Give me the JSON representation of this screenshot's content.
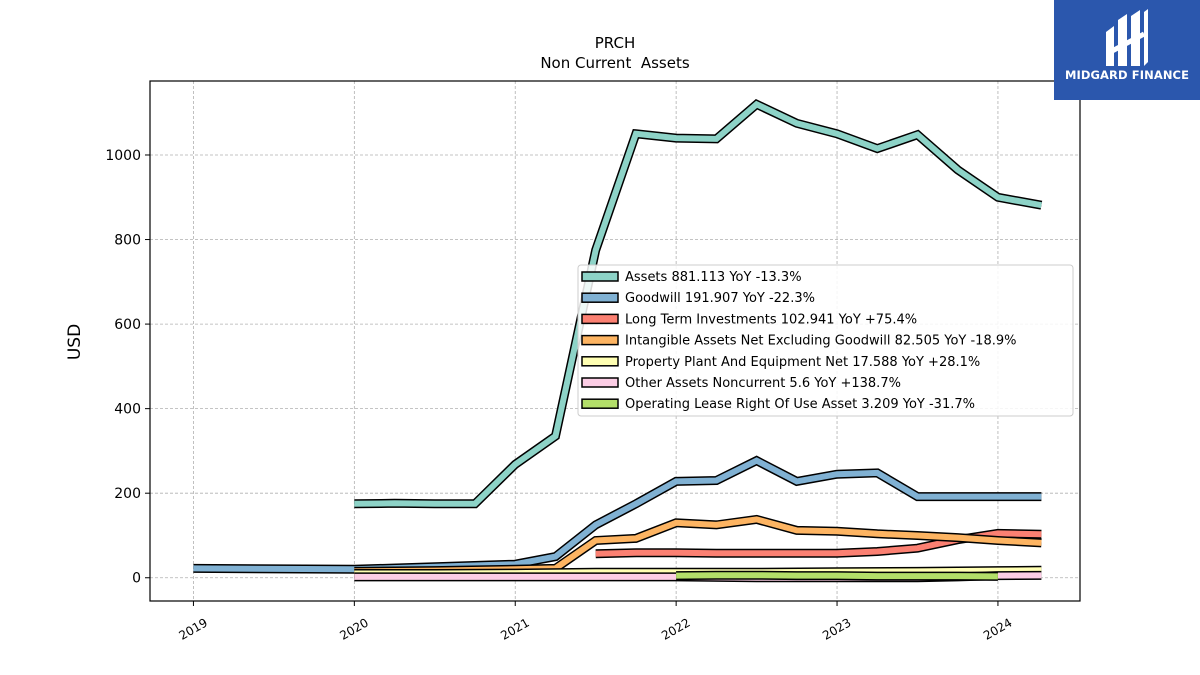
{
  "chart_data": {
    "type": "line",
    "title": "PRCH",
    "subtitle": "Non Current  Assets",
    "ylabel": "USD",
    "xlabel": "",
    "xlim": [
      2018.73,
      2024.51
    ],
    "ylim": [
      -55,
      1175
    ],
    "x_ticks": [
      "2019",
      "2020",
      "2021",
      "2022",
      "2023",
      "2024"
    ],
    "y_ticks": [
      0,
      200,
      400,
      600,
      800,
      1000
    ],
    "grid": true,
    "legend_position": "center-right",
    "series": [
      {
        "name": "Assets",
        "legend": "Assets  881.113 YoY -13.3%",
        "color": "#8dd3c7",
        "points": [
          [
            2020.0,
            175
          ],
          [
            2020.25,
            176
          ],
          [
            2020.5,
            175
          ],
          [
            2020.75,
            175
          ],
          [
            2021.0,
            268
          ],
          [
            2021.25,
            335
          ],
          [
            2021.5,
            775
          ],
          [
            2021.75,
            1050
          ],
          [
            2022.0,
            1040
          ],
          [
            2022.25,
            1038
          ],
          [
            2022.5,
            1120
          ],
          [
            2022.75,
            1075
          ],
          [
            2023.0,
            1050
          ],
          [
            2023.25,
            1015
          ],
          [
            2023.5,
            1048
          ],
          [
            2023.75,
            965
          ],
          [
            2024.0,
            900
          ],
          [
            2024.27,
            881.113
          ]
        ]
      },
      {
        "name": "Goodwill",
        "legend": "Goodwill  191.907 YoY -22.3%",
        "color": "#80b1d3",
        "points": [
          [
            2019.0,
            22
          ],
          [
            2020.0,
            20
          ],
          [
            2021.0,
            32
          ],
          [
            2021.25,
            50
          ],
          [
            2021.5,
            125
          ],
          [
            2021.75,
            175
          ],
          [
            2022.0,
            228
          ],
          [
            2022.25,
            230
          ],
          [
            2022.5,
            277
          ],
          [
            2022.75,
            228
          ],
          [
            2023.0,
            245
          ],
          [
            2023.25,
            248
          ],
          [
            2023.5,
            192
          ],
          [
            2023.75,
            192
          ],
          [
            2024.0,
            192
          ],
          [
            2024.27,
            191.907
          ]
        ]
      },
      {
        "name": "Long Term Investments",
        "legend": "Long Term Investments  102.941 YoY +75.4%",
        "color": "#fb8072",
        "points": [
          [
            2021.5,
            57
          ],
          [
            2021.75,
            59
          ],
          [
            2022.0,
            59
          ],
          [
            2022.25,
            58
          ],
          [
            2022.5,
            58
          ],
          [
            2022.75,
            58
          ],
          [
            2023.0,
            58
          ],
          [
            2023.25,
            62
          ],
          [
            2023.5,
            70
          ],
          [
            2023.75,
            90
          ],
          [
            2024.0,
            105
          ],
          [
            2024.27,
            102.941
          ]
        ]
      },
      {
        "name": "Intangible Assets Net Excluding Goodwill",
        "legend": "Intangible Assets Net Excluding Goodwill  82.505 YoY -18.9%",
        "color": "#fdb462",
        "points": [
          [
            2020.0,
            15
          ],
          [
            2020.5,
            17
          ],
          [
            2021.0,
            20
          ],
          [
            2021.25,
            22
          ],
          [
            2021.5,
            88
          ],
          [
            2021.75,
            93
          ],
          [
            2022.0,
            130
          ],
          [
            2022.25,
            125
          ],
          [
            2022.5,
            138
          ],
          [
            2022.75,
            112
          ],
          [
            2023.0,
            110
          ],
          [
            2023.25,
            104
          ],
          [
            2023.5,
            100
          ],
          [
            2023.75,
            95
          ],
          [
            2024.0,
            88
          ],
          [
            2024.27,
            82.505
          ]
        ]
      },
      {
        "name": "Property Plant And Equipment Net",
        "legend": "Property Plant And Equipment Net  17.588 YoY +28.1%",
        "color": "#ffffb3",
        "points": [
          [
            2020.0,
            10
          ],
          [
            2020.5,
            10
          ],
          [
            2021.0,
            11
          ],
          [
            2021.5,
            13
          ],
          [
            2022.0,
            13
          ],
          [
            2022.5,
            13
          ],
          [
            2023.0,
            14
          ],
          [
            2023.5,
            15
          ],
          [
            2024.0,
            17
          ],
          [
            2024.27,
            17.588
          ]
        ]
      },
      {
        "name": "Other Assets Noncurrent",
        "legend": "Other Assets Noncurrent  5.6 YoY +138.7%",
        "color": "#fccde5",
        "points": [
          [
            2020.0,
            2
          ],
          [
            2020.5,
            2
          ],
          [
            2021.0,
            2
          ],
          [
            2021.5,
            2
          ],
          [
            2022.0,
            2
          ],
          [
            2022.5,
            0
          ],
          [
            2023.0,
            0
          ],
          [
            2023.5,
            0
          ],
          [
            2023.75,
            2
          ],
          [
            2024.0,
            5
          ],
          [
            2024.27,
            5.6
          ]
        ]
      },
      {
        "name": "Operating Lease Right Of Use Asset",
        "legend": "Operating Lease Right Of Use Asset  3.209 YoY -31.7%",
        "color": "#b3de69",
        "points": [
          [
            2022.0,
            5
          ],
          [
            2022.25,
            6
          ],
          [
            2022.5,
            6
          ],
          [
            2022.75,
            5
          ],
          [
            2023.0,
            5
          ],
          [
            2023.25,
            4
          ],
          [
            2023.5,
            4
          ],
          [
            2023.75,
            4
          ],
          [
            2024.0,
            3.209
          ]
        ]
      }
    ]
  },
  "logo": {
    "text": "MIDGARD FINANCE",
    "background": "#2b57ad"
  }
}
